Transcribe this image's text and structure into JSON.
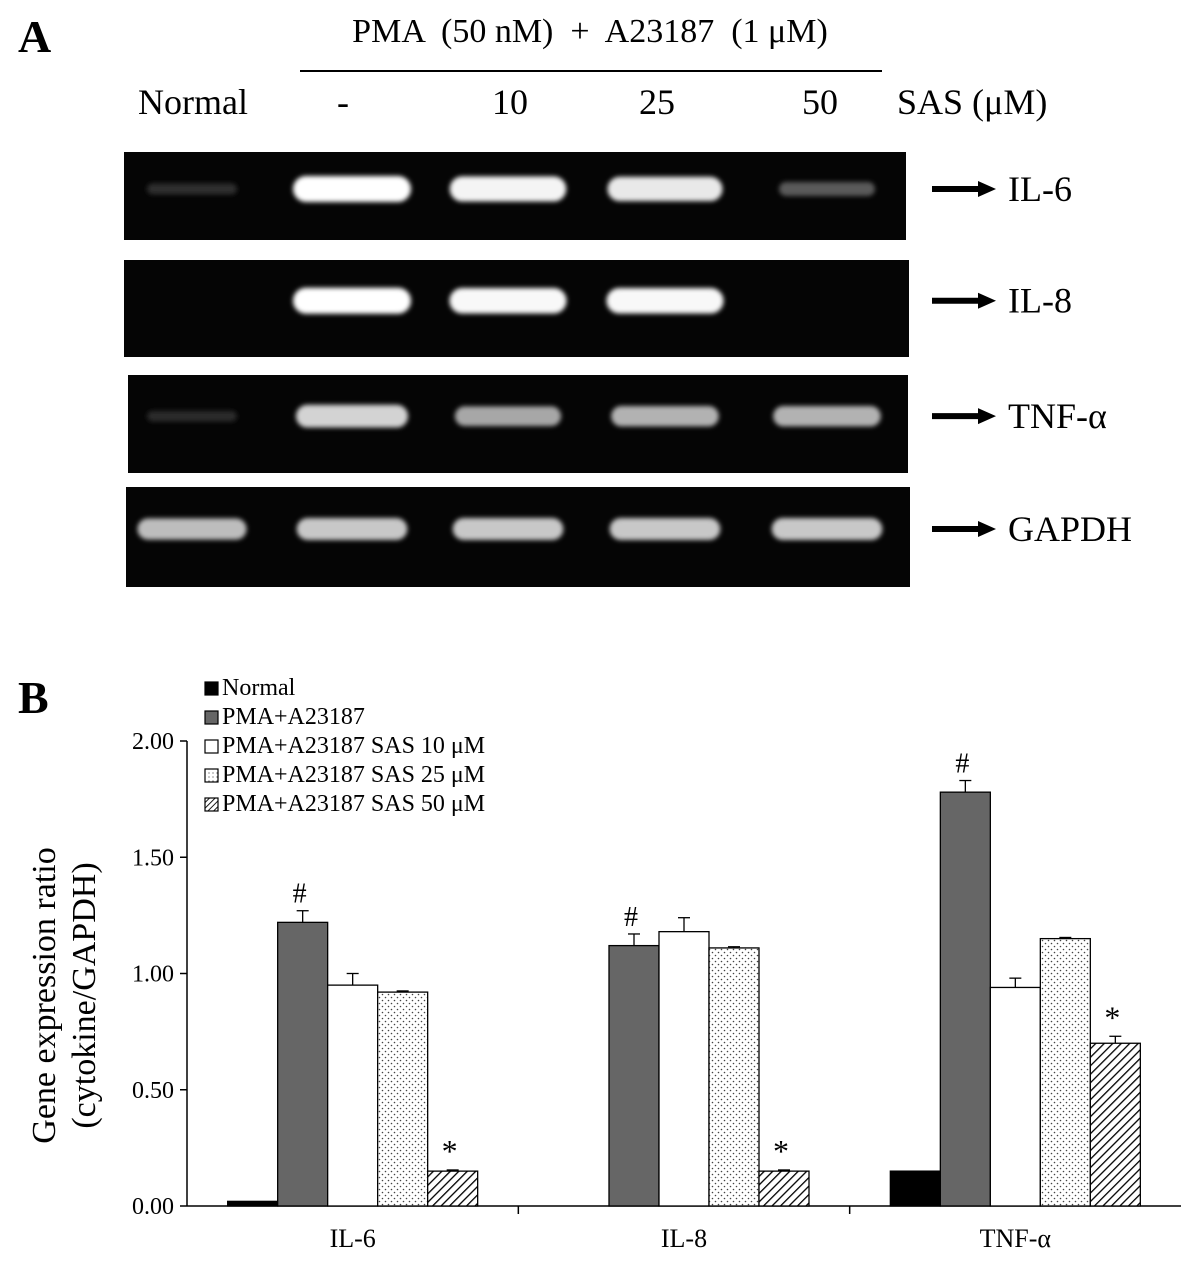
{
  "panel_a": {
    "label": "A",
    "treatment": "PMA  (50 nM)  +  A23187  (1 μM)",
    "lane_labels": [
      "Normal",
      "-",
      "10",
      "25",
      "50"
    ],
    "dose_label": "SAS (μM)",
    "bands": [
      {
        "name": "IL-6",
        "intensities": [
          0.05,
          1.0,
          0.95,
          0.9,
          0.25
        ]
      },
      {
        "name": "IL-8",
        "intensities": [
          0.0,
          1.0,
          0.97,
          0.97,
          0.0
        ]
      },
      {
        "name": "TNF-α",
        "intensities": [
          0.04,
          0.8,
          0.6,
          0.65,
          0.65
        ]
      },
      {
        "name": "GAPDH",
        "intensities": [
          0.7,
          0.75,
          0.75,
          0.75,
          0.75
        ]
      }
    ]
  },
  "panel_b": {
    "label": "B"
  },
  "chart_data": {
    "type": "bar",
    "categories": [
      "IL-6",
      "IL-8",
      "TNF-α"
    ],
    "ylabel": "Gene  expression  ratio\n(cytokine/GAPDH)",
    "ylim": [
      0,
      2
    ],
    "yticks": [
      "0.00",
      "0.50",
      "1.00",
      "1.50",
      "2.00"
    ],
    "legend_position": "top-left",
    "series": [
      {
        "name": "Normal",
        "values": [
          0.02,
          0.0,
          0.15
        ],
        "errors": [
          0,
          0,
          0
        ],
        "color": "#000000",
        "pattern": "solid"
      },
      {
        "name": "PMA+A23187",
        "values": [
          1.22,
          1.12,
          1.78
        ],
        "errors": [
          0.05,
          0.05,
          0.05
        ],
        "color": "#666666",
        "pattern": "solid"
      },
      {
        "name": "PMA+A23187 SAS 10 μM",
        "values": [
          0.95,
          1.18,
          0.94
        ],
        "errors": [
          0.05,
          0.06,
          0.04
        ],
        "color": "#ffffff",
        "pattern": "solid"
      },
      {
        "name": "PMA+A23187 SAS 25 μM",
        "values": [
          0.92,
          1.11,
          1.15
        ],
        "errors": [
          0.005,
          0.005,
          0.005
        ],
        "color": "#ffffff",
        "pattern": "dots"
      },
      {
        "name": "PMA+A23187 SAS 50 μM",
        "values": [
          0.15,
          0.15,
          0.7
        ],
        "errors": [
          0.005,
          0.005,
          0.03
        ],
        "color": "#ffffff",
        "pattern": "hatch"
      }
    ],
    "annotations": [
      {
        "text": "#",
        "category": 0,
        "series": 1
      },
      {
        "text": "*",
        "category": 0,
        "series": 4
      },
      {
        "text": "#",
        "category": 1,
        "series": 1
      },
      {
        "text": "*",
        "category": 1,
        "series": 4
      },
      {
        "text": "#",
        "category": 2,
        "series": 1
      },
      {
        "text": "*",
        "category": 2,
        "series": 4
      }
    ]
  }
}
